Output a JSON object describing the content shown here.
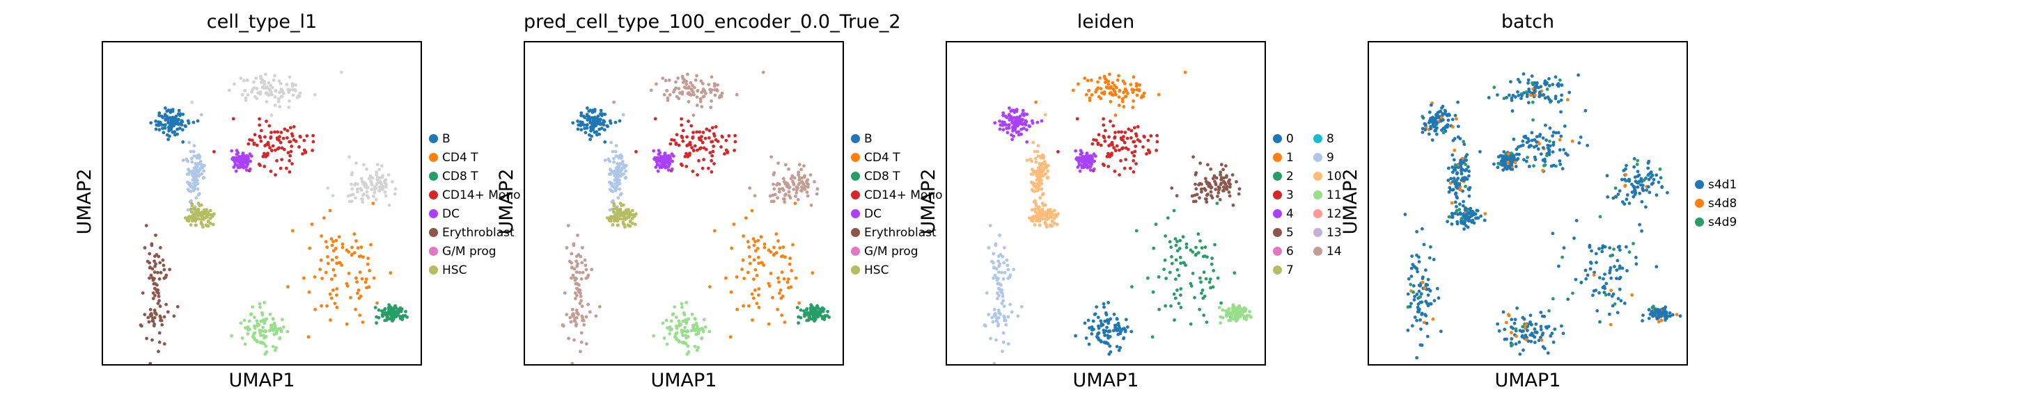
{
  "axis": {
    "xlabel": "UMAP1",
    "ylabel": "UMAP2"
  },
  "chart_data": [
    {
      "type": "scatter",
      "title": "cell_type_l1",
      "xlabel": "UMAP1",
      "ylabel": "UMAP2",
      "legend_position": "right",
      "legend": [
        {
          "label": "B",
          "color": "#1f77b4"
        },
        {
          "label": "CD4 T",
          "color": "#ff7f0e"
        },
        {
          "label": "CD8 T",
          "color": "#279e68"
        },
        {
          "label": "CD14+ Mono",
          "color": "#d62728"
        },
        {
          "label": "DC",
          "color": "#aa40fc"
        },
        {
          "label": "Erythroblast",
          "color": "#8c564b"
        },
        {
          "label": "G/M prog",
          "color": "#e377c2"
        },
        {
          "label": "HSC",
          "color": "#b5bd61"
        }
      ]
    },
    {
      "type": "scatter",
      "title": "pred_cell_type_100_encoder_0.0_True_2",
      "xlabel": "UMAP1",
      "ylabel": "UMAP2",
      "legend_position": "right",
      "legend": [
        {
          "label": "B",
          "color": "#1f77b4"
        },
        {
          "label": "CD4 T",
          "color": "#ff7f0e"
        },
        {
          "label": "CD8 T",
          "color": "#279e68"
        },
        {
          "label": "CD14+ Mono",
          "color": "#d62728"
        },
        {
          "label": "DC",
          "color": "#aa40fc"
        },
        {
          "label": "Erythroblast",
          "color": "#8c564b"
        },
        {
          "label": "G/M prog",
          "color": "#e377c2"
        },
        {
          "label": "HSC",
          "color": "#b5bd61"
        }
      ]
    },
    {
      "type": "scatter",
      "title": "leiden",
      "xlabel": "UMAP1",
      "ylabel": "UMAP2",
      "legend_position": "right",
      "legend": [
        {
          "label": "0",
          "color": "#1f77b4"
        },
        {
          "label": "1",
          "color": "#ff7f0e"
        },
        {
          "label": "2",
          "color": "#279e68"
        },
        {
          "label": "3",
          "color": "#d62728"
        },
        {
          "label": "4",
          "color": "#aa40fc"
        },
        {
          "label": "5",
          "color": "#8c564b"
        },
        {
          "label": "6",
          "color": "#e377c2"
        },
        {
          "label": "7",
          "color": "#b5bd61"
        },
        {
          "label": "8",
          "color": "#17becf"
        },
        {
          "label": "9",
          "color": "#aec7e8"
        },
        {
          "label": "10",
          "color": "#ffbb78"
        },
        {
          "label": "11",
          "color": "#98df8a"
        },
        {
          "label": "12",
          "color": "#ff9896"
        },
        {
          "label": "13",
          "color": "#c5b0d5"
        },
        {
          "label": "14",
          "color": "#c49c94"
        }
      ]
    },
    {
      "type": "scatter",
      "title": "batch",
      "xlabel": "UMAP1",
      "ylabel": "UMAP2",
      "legend_position": "right",
      "legend": [
        {
          "label": "s4d1",
          "color": "#1f77b4"
        },
        {
          "label": "s4d8",
          "color": "#ff7f0e"
        },
        {
          "label": "s4d9",
          "color": "#279e68"
        }
      ]
    }
  ]
}
